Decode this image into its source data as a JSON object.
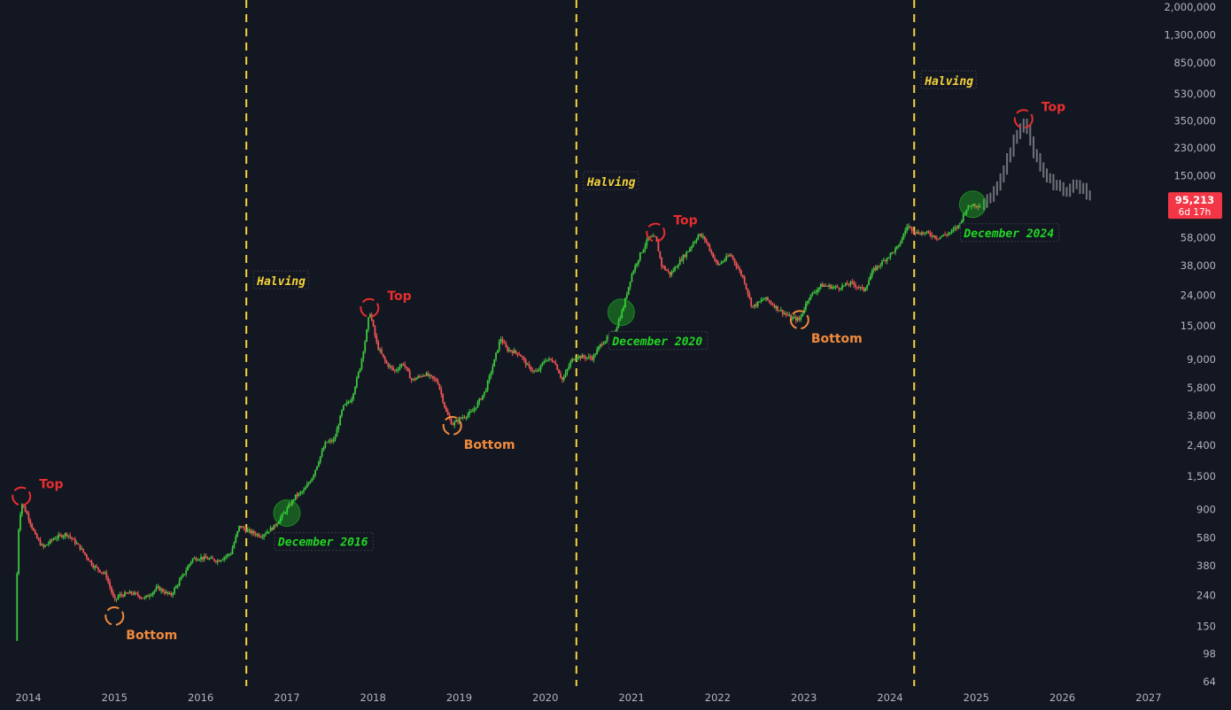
{
  "chart_data": {
    "type": "candlestick",
    "scale": "log",
    "ylim": [
      64,
      2000000
    ],
    "price_axis_ticks": [
      "2,000,000",
      "1,300,000",
      "850,000",
      "530,000",
      "350,000",
      "230,000",
      "150,000",
      "95,213",
      "58,000",
      "38,000",
      "24,000",
      "15,000",
      "9,000",
      "5,800",
      "3,800",
      "2,400",
      "1,500",
      "900",
      "580",
      "380",
      "240",
      "150",
      "98",
      "64"
    ],
    "time_axis_ticks": [
      "2014",
      "2015",
      "2016",
      "2017",
      "2018",
      "2019",
      "2020",
      "2021",
      "2022",
      "2023",
      "2024",
      "2025",
      "2026",
      "2027"
    ],
    "last_price": {
      "value": "95,213",
      "countdown": "6d 17h"
    },
    "halvings": [
      {
        "label": "Halving",
        "year": 2016.53
      },
      {
        "label": "Halving",
        "year": 2020.36
      },
      {
        "label": "Halving",
        "year": 2024.28
      }
    ],
    "annotations": [
      {
        "type": "top",
        "label": "Top",
        "year": 2013.92,
        "price": 1100
      },
      {
        "type": "bottom",
        "label": "Bottom",
        "year": 2015.0,
        "price": 175
      },
      {
        "type": "entry",
        "label": "December 2016",
        "year": 2017.0,
        "price": 850
      },
      {
        "type": "top",
        "label": "Top",
        "year": 2017.96,
        "price": 19800
      },
      {
        "type": "bottom",
        "label": "Bottom",
        "year": 2018.92,
        "price": 3250
      },
      {
        "type": "entry",
        "label": "December 2020",
        "year": 2020.88,
        "price": 18500
      },
      {
        "type": "top",
        "label": "Top",
        "year": 2021.28,
        "price": 63000
      },
      {
        "type": "bottom",
        "label": "Bottom",
        "year": 2022.95,
        "price": 16500
      },
      {
        "type": "entry",
        "label": "December 2024",
        "year": 2024.96,
        "price": 97000
      },
      {
        "type": "top",
        "label": "Top",
        "year": 2025.55,
        "price": 360000
      }
    ],
    "price_path": [
      [
        2013.85,
        120
      ],
      [
        2013.88,
        600
      ],
      [
        2013.92,
        1000
      ],
      [
        2014.0,
        800
      ],
      [
        2014.08,
        600
      ],
      [
        2014.17,
        500
      ],
      [
        2014.3,
        580
      ],
      [
        2014.45,
        620
      ],
      [
        2014.6,
        500
      ],
      [
        2014.75,
        380
      ],
      [
        2014.9,
        330
      ],
      [
        2015.0,
        220
      ],
      [
        2015.05,
        240
      ],
      [
        2015.2,
        250
      ],
      [
        2015.35,
        230
      ],
      [
        2015.5,
        270
      ],
      [
        2015.65,
        240
      ],
      [
        2015.8,
        330
      ],
      [
        2015.9,
        420
      ],
      [
        2016.0,
        430
      ],
      [
        2016.2,
        410
      ],
      [
        2016.35,
        460
      ],
      [
        2016.45,
        700
      ],
      [
        2016.53,
        650
      ],
      [
        2016.7,
        600
      ],
      [
        2016.85,
        690
      ],
      [
        2017.0,
        900
      ],
      [
        2017.1,
        1100
      ],
      [
        2017.2,
        1200
      ],
      [
        2017.3,
        1500
      ],
      [
        2017.45,
        2500
      ],
      [
        2017.55,
        2600
      ],
      [
        2017.65,
        4300
      ],
      [
        2017.75,
        4900
      ],
      [
        2017.85,
        8000
      ],
      [
        2017.92,
        13000
      ],
      [
        2017.96,
        19000
      ],
      [
        2018.05,
        11000
      ],
      [
        2018.15,
        8500
      ],
      [
        2018.25,
        7500
      ],
      [
        2018.35,
        8500
      ],
      [
        2018.45,
        6500
      ],
      [
        2018.6,
        7200
      ],
      [
        2018.75,
        6400
      ],
      [
        2018.85,
        4000
      ],
      [
        2018.92,
        3300
      ],
      [
        2019.0,
        3600
      ],
      [
        2019.15,
        4000
      ],
      [
        2019.3,
        5500
      ],
      [
        2019.4,
        8500
      ],
      [
        2019.48,
        12500
      ],
      [
        2019.55,
        10500
      ],
      [
        2019.7,
        9800
      ],
      [
        2019.8,
        8000
      ],
      [
        2019.9,
        7300
      ],
      [
        2020.0,
        9000
      ],
      [
        2020.1,
        8800
      ],
      [
        2020.2,
        6500
      ],
      [
        2020.3,
        8800
      ],
      [
        2020.36,
        9400
      ],
      [
        2020.55,
        9200
      ],
      [
        2020.65,
        11500
      ],
      [
        2020.8,
        13500
      ],
      [
        2020.9,
        19500
      ],
      [
        2021.0,
        33000
      ],
      [
        2021.1,
        45000
      ],
      [
        2021.2,
        58000
      ],
      [
        2021.28,
        58000
      ],
      [
        2021.35,
        38000
      ],
      [
        2021.45,
        33000
      ],
      [
        2021.55,
        40000
      ],
      [
        2021.65,
        47000
      ],
      [
        2021.78,
        61000
      ],
      [
        2021.85,
        57000
      ],
      [
        2021.92,
        47000
      ],
      [
        2022.0,
        38000
      ],
      [
        2022.15,
        45000
      ],
      [
        2022.3,
        31000
      ],
      [
        2022.4,
        20000
      ],
      [
        2022.55,
        23000
      ],
      [
        2022.7,
        19500
      ],
      [
        2022.85,
        17000
      ],
      [
        2022.95,
        16500
      ],
      [
        2023.05,
        23000
      ],
      [
        2023.2,
        28000
      ],
      [
        2023.4,
        27000
      ],
      [
        2023.55,
        29000
      ],
      [
        2023.7,
        26000
      ],
      [
        2023.8,
        35000
      ],
      [
        2023.95,
        42000
      ],
      [
        2024.1,
        51000
      ],
      [
        2024.2,
        70000
      ],
      [
        2024.3,
        63000
      ],
      [
        2024.45,
        62000
      ],
      [
        2024.55,
        58000
      ],
      [
        2024.7,
        63000
      ],
      [
        2024.8,
        70000
      ],
      [
        2024.88,
        90000
      ],
      [
        2024.96,
        97000
      ],
      [
        2025.05,
        95213
      ]
    ],
    "projection_path": [
      [
        2025.05,
        95213
      ],
      [
        2025.15,
        110000
      ],
      [
        2025.25,
        130000
      ],
      [
        2025.35,
        190000
      ],
      [
        2025.45,
        270000
      ],
      [
        2025.55,
        350000
      ],
      [
        2025.65,
        230000
      ],
      [
        2025.75,
        170000
      ],
      [
        2025.85,
        140000
      ],
      [
        2025.95,
        125000
      ],
      [
        2026.05,
        120000
      ],
      [
        2026.15,
        135000
      ],
      [
        2026.25,
        120000
      ],
      [
        2026.35,
        110000
      ]
    ],
    "colors": {
      "background": "#131722",
      "up": "#3ec73e",
      "down": "#f05555",
      "projection": "#70727a",
      "halving_line": "#f5d33a",
      "halving_text": "#f5d33a",
      "top": "#e82e2e",
      "bottom": "#f08a3c",
      "entry": "#22d622",
      "price_label_bg": "#f23645"
    }
  }
}
